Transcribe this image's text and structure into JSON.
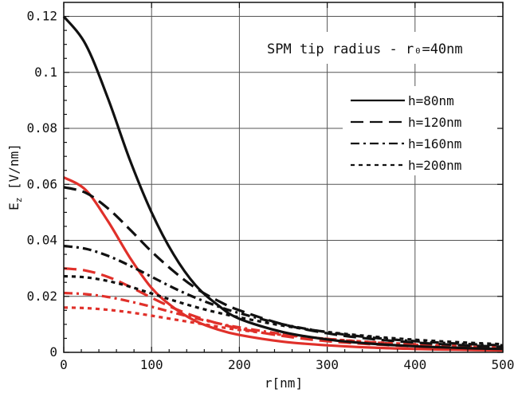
{
  "chart_data": {
    "type": "line",
    "title": "",
    "annotation": "SPM tip radius - r₀=40nm",
    "xlabel": "r[nm]",
    "ylabel": "Ez [V/nm]",
    "ylabel_main": "E",
    "ylabel_sub": "z",
    "ylabel_unit": " [V/nm]",
    "xlim": [
      0,
      500
    ],
    "ylim": [
      0,
      0.125
    ],
    "xticks": [
      0,
      100,
      200,
      300,
      400,
      500
    ],
    "xtick_labels": [
      "0",
      "100",
      "200",
      "300",
      "400",
      "500"
    ],
    "yticks": [
      0,
      0.02,
      0.04,
      0.06,
      0.08,
      0.1,
      0.12
    ],
    "ytick_labels": [
      "0",
      "0.02",
      "0.04",
      "0.06",
      "0.08",
      "0.1",
      "0.12"
    ],
    "grid": true,
    "legend_placement": "top-right",
    "legend": [
      {
        "label": "h=80nm",
        "dash": "solid"
      },
      {
        "label": "h=120nm",
        "dash": "long-dash"
      },
      {
        "label": "h=160nm",
        "dash": "dash-dot"
      },
      {
        "label": "h=200nm",
        "dash": "short-dash"
      }
    ],
    "colors": {
      "black": "#111111",
      "red": "#e0302a"
    },
    "x": [
      0,
      25,
      50,
      75,
      100,
      125,
      150,
      175,
      200,
      250,
      300,
      350,
      400,
      450,
      500
    ],
    "series": [
      {
        "h": "h=80nm",
        "group": "black",
        "color": "#111111",
        "dash": "solid",
        "values": [
          0.12,
          0.11,
          0.091,
          0.069,
          0.05,
          0.035,
          0.024,
          0.017,
          0.012,
          0.0072,
          0.0046,
          0.0031,
          0.0022,
          0.0016,
          0.0012
        ]
      },
      {
        "h": "h=120nm",
        "group": "black",
        "color": "#111111",
        "dash": "long-dash",
        "values": [
          0.059,
          0.057,
          0.0515,
          0.044,
          0.036,
          0.029,
          0.023,
          0.0185,
          0.015,
          0.01,
          0.0068,
          0.0048,
          0.0035,
          0.0026,
          0.002
        ]
      },
      {
        "h": "h=160nm",
        "group": "black",
        "color": "#111111",
        "dash": "dash-dot",
        "values": [
          0.038,
          0.037,
          0.0345,
          0.031,
          0.027,
          0.023,
          0.0195,
          0.0165,
          0.014,
          0.01,
          0.0072,
          0.0053,
          0.004,
          0.0031,
          0.0025
        ]
      },
      {
        "h": "h=200nm",
        "group": "black",
        "color": "#111111",
        "dash": "short-dash",
        "values": [
          0.0272,
          0.0268,
          0.0255,
          0.0235,
          0.021,
          0.0185,
          0.0162,
          0.0142,
          0.0125,
          0.0095,
          0.0073,
          0.0057,
          0.0045,
          0.0036,
          0.0029
        ]
      },
      {
        "h": "h=80nm",
        "group": "red",
        "color": "#e0302a",
        "dash": "solid",
        "values": [
          0.0625,
          0.058,
          0.047,
          0.034,
          0.023,
          0.016,
          0.0112,
          0.0082,
          0.0062,
          0.0038,
          0.0025,
          0.0017,
          0.0012,
          0.0009,
          0.0007
        ]
      },
      {
        "h": "h=120nm",
        "group": "red",
        "color": "#e0302a",
        "dash": "long-dash",
        "values": [
          0.03,
          0.0292,
          0.027,
          0.0235,
          0.0195,
          0.0158,
          0.0128,
          0.0104,
          0.0085,
          0.0058,
          0.004,
          0.0029,
          0.0021,
          0.0016,
          0.0012
        ]
      },
      {
        "h": "h=160nm",
        "group": "red",
        "color": "#e0302a",
        "dash": "dash-dot",
        "values": [
          0.0212,
          0.0208,
          0.0198,
          0.0182,
          0.0163,
          0.0142,
          0.0122,
          0.0104,
          0.0089,
          0.0065,
          0.0048,
          0.0036,
          0.0027,
          0.0021,
          0.0016
        ]
      },
      {
        "h": "h=200nm",
        "group": "red",
        "color": "#e0302a",
        "dash": "short-dash",
        "values": [
          0.016,
          0.0158,
          0.0152,
          0.0143,
          0.0131,
          0.0118,
          0.0105,
          0.0092,
          0.008,
          0.0062,
          0.0048,
          0.0037,
          0.0029,
          0.0023,
          0.0019
        ]
      }
    ]
  }
}
